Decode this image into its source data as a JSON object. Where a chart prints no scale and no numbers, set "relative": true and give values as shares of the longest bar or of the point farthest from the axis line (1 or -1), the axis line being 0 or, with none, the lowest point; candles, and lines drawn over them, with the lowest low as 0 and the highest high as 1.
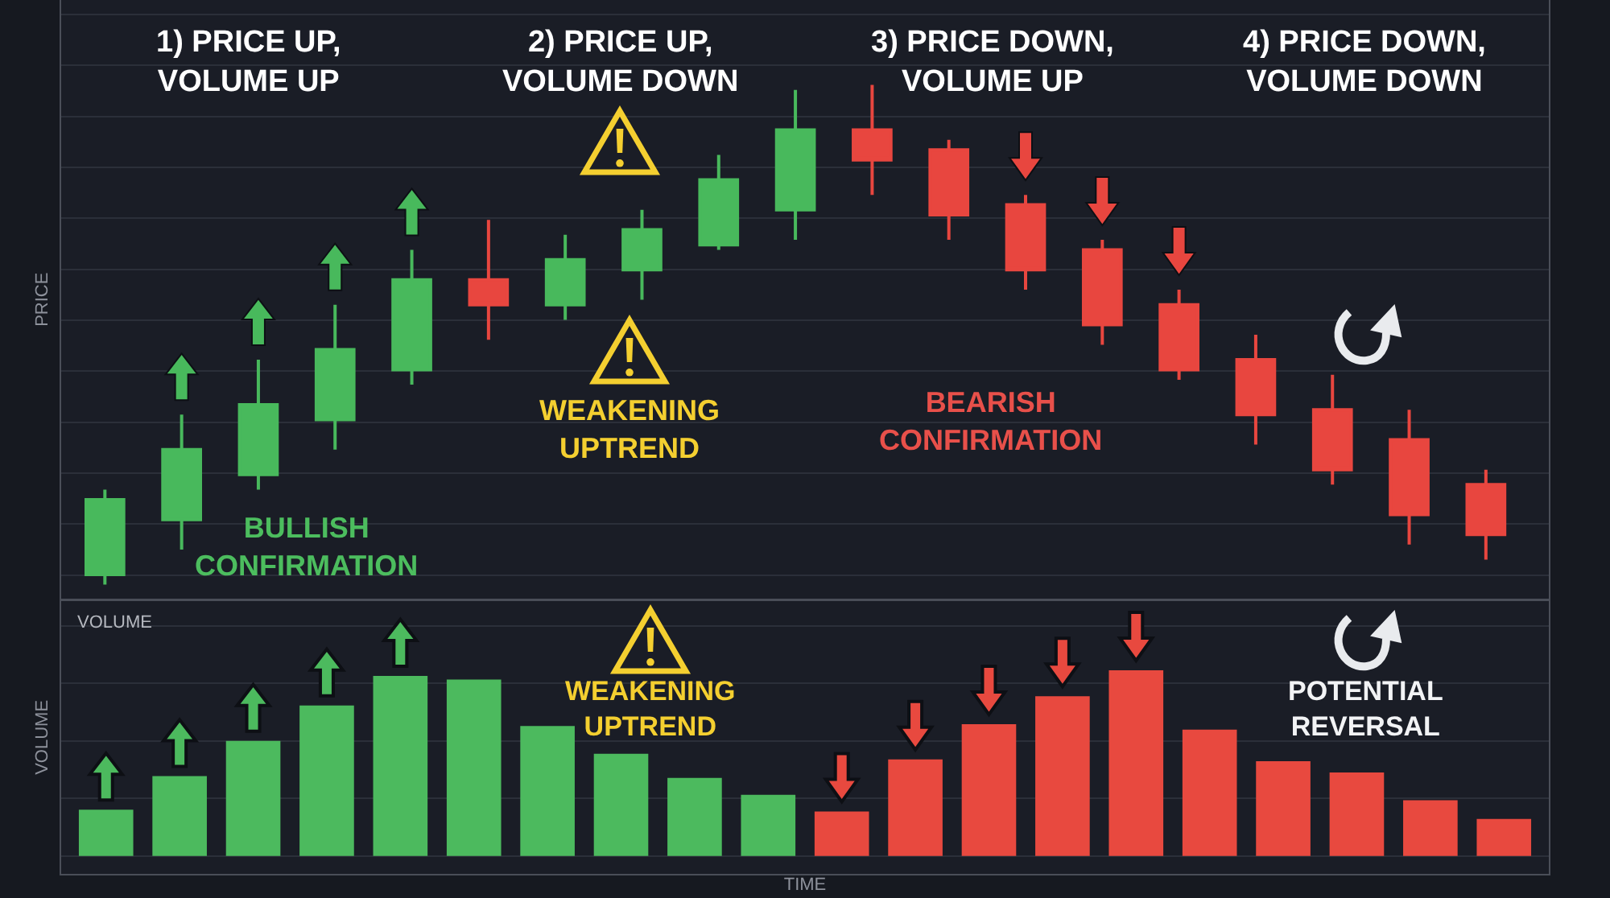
{
  "chart_data": [
    {
      "type": "candlestick",
      "categories": [
        null,
        null,
        null,
        null,
        null,
        null,
        null,
        null,
        null,
        null,
        null,
        null,
        null,
        null,
        null,
        null,
        null,
        null,
        null
      ],
      "ohlc": [
        [
          0.02,
          0.19,
          0.0,
          0.17
        ],
        [
          0.13,
          0.34,
          0.07,
          0.27
        ],
        [
          0.22,
          0.45,
          0.19,
          0.36
        ],
        [
          0.33,
          0.56,
          0.27,
          0.47
        ],
        [
          0.43,
          0.67,
          0.4,
          0.61
        ],
        [
          0.61,
          0.73,
          0.49,
          0.56
        ],
        [
          0.56,
          0.7,
          0.53,
          0.65
        ],
        [
          0.63,
          0.75,
          0.57,
          0.71
        ],
        [
          0.68,
          0.86,
          0.67,
          0.81
        ],
        [
          0.75,
          0.99,
          0.69,
          0.91
        ],
        [
          0.91,
          1.0,
          0.78,
          0.85
        ],
        [
          0.87,
          0.89,
          0.69,
          0.74
        ],
        [
          0.76,
          0.78,
          0.59,
          0.63
        ],
        [
          0.67,
          0.69,
          0.48,
          0.52
        ],
        [
          0.56,
          0.59,
          0.41,
          0.43
        ],
        [
          0.45,
          0.5,
          0.28,
          0.34
        ],
        [
          0.35,
          0.42,
          0.2,
          0.23
        ],
        [
          0.29,
          0.35,
          0.08,
          0.14
        ],
        [
          0.2,
          0.23,
          0.05,
          0.1
        ]
      ],
      "colors": [
        "#48b95c",
        "#48b95c",
        "#48b95c",
        "#48b95c",
        "#48b95c",
        "#e8463f",
        "#48b95c",
        "#48b95c",
        "#48b95c",
        "#48b95c",
        "#e8463f",
        "#e8463f",
        "#e8463f",
        "#e8463f",
        "#e8463f",
        "#e8463f",
        "#e8463f",
        "#e8463f",
        "#e8463f"
      ],
      "relative": true,
      "ylabel": "PRICE",
      "annotations": [
        "1) PRICE UP,\nVOLUME UP",
        "2) PRICE UP,\nVOLUME DOWN",
        "3) PRICE DOWN,\nVOLUME UP",
        "4) PRICE DOWN,\nVOLUME DOWN",
        "BULLISH\nCONFIRMATION",
        "WEAKENING\nUPTREND",
        "BEARISH\nCONFIRMATION"
      ],
      "grid": "y",
      "tick_labels": false
    },
    {
      "type": "bar",
      "title": "VOLUME",
      "categories": [
        null,
        null,
        null,
        null,
        null,
        null,
        null,
        null,
        null,
        null,
        null,
        null,
        null,
        null,
        null,
        null,
        null,
        null,
        null,
        null
      ],
      "values": [
        0.25,
        0.43,
        0.62,
        0.81,
        0.97,
        0.95,
        0.7,
        0.55,
        0.42,
        0.33,
        0.24,
        0.52,
        0.71,
        0.86,
        1.0,
        0.68,
        0.51,
        0.45,
        0.3,
        0.2
      ],
      "colors": [
        "#4cba5e",
        "#4cba5e",
        "#4cba5e",
        "#4cba5e",
        "#4cba5e",
        "#4cba5e",
        "#4cba5e",
        "#4cba5e",
        "#4cba5e",
        "#4cba5e",
        "#e8493f",
        "#e8493f",
        "#e8493f",
        "#e8493f",
        "#e8493f",
        "#e8493f",
        "#e8493f",
        "#e8493f",
        "#e8493f",
        "#e8493f"
      ],
      "relative": true,
      "xlabel": "TIME",
      "ylabel": "VOLUME",
      "annotations": [
        "WEAKENING\nUPTREND",
        "POTENTIAL\nREVERSAL"
      ],
      "grid": "y",
      "tick_labels": false
    }
  ]
}
